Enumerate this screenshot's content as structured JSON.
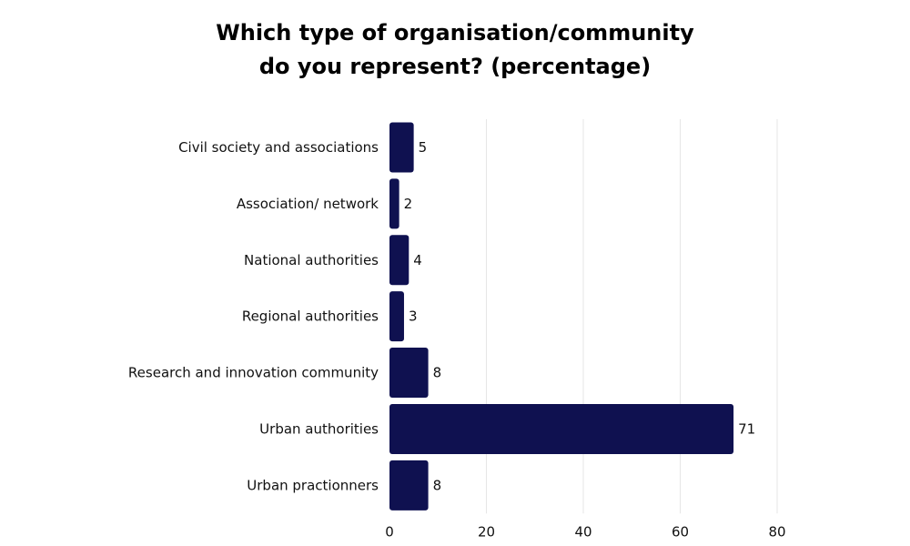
{
  "chart_data": {
    "type": "bar",
    "orientation": "horizontal",
    "title_lines": [
      "Which type of organisation/community",
      "do you represent? (percentage)"
    ],
    "categories": [
      "Civil society and associations",
      "Association/ network",
      "National authorities",
      "Regional authorities",
      "Research and innovation community",
      "Urban authorities",
      "Urban practionners"
    ],
    "values": [
      5,
      2,
      4,
      3,
      8,
      71,
      8
    ],
    "xlim": [
      0,
      80
    ],
    "xticks": [
      0,
      20,
      40,
      60,
      80
    ],
    "xlabel": "",
    "ylabel": "",
    "grid": true,
    "bar_color": "#0f1150",
    "grid_color": "#e6e6e6"
  }
}
